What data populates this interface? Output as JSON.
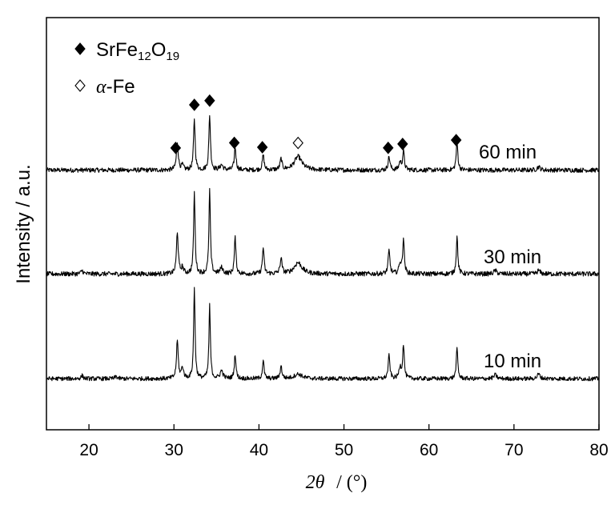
{
  "chart_data": {
    "type": "line",
    "xlabel_symbol": "2θ",
    "xlabel_unit": "/ (°)",
    "ylabel": "Intensity / a.u.",
    "xlim": [
      15,
      80
    ],
    "xticks": [
      20,
      30,
      40,
      50,
      60,
      70,
      80
    ],
    "yticks_shown": false,
    "legend": {
      "placement": "top-left",
      "entries": [
        {
          "marker": "filled-diamond",
          "parts": [
            {
              "text": "SrFe",
              "sub": false
            },
            {
              "text": "12",
              "sub": true
            },
            {
              "text": "O",
              "sub": false
            },
            {
              "text": "19",
              "sub": true
            }
          ]
        },
        {
          "marker": "open-diamond",
          "parts": [
            {
              "text": "α",
              "sub": false,
              "italic": true
            },
            {
              "text": "-Fe",
              "sub": false
            }
          ]
        }
      ]
    },
    "series": [
      {
        "name": "60 min",
        "baseline": 0.9,
        "peaks": [
          {
            "x": 30.4,
            "h": 3.3,
            "w": 0.13
          },
          {
            "x": 31.0,
            "h": 0.5,
            "w": 0.15
          },
          {
            "x": 32.4,
            "h": 6.1,
            "w": 0.11
          },
          {
            "x": 34.2,
            "h": 6.6,
            "w": 0.11
          },
          {
            "x": 35.6,
            "h": 0.6,
            "w": 0.2
          },
          {
            "x": 37.2,
            "h": 2.7,
            "w": 0.12
          },
          {
            "x": 40.5,
            "h": 1.8,
            "w": 0.12
          },
          {
            "x": 42.6,
            "h": 1.3,
            "w": 0.13
          },
          {
            "x": 44.6,
            "h": 1.6,
            "w": 0.55
          },
          {
            "x": 55.3,
            "h": 1.6,
            "w": 0.13
          },
          {
            "x": 56.6,
            "h": 0.9,
            "w": 0.15
          },
          {
            "x": 57.0,
            "h": 2.2,
            "w": 0.12
          },
          {
            "x": 63.3,
            "h": 3.3,
            "w": 0.12
          },
          {
            "x": 72.9,
            "h": 0.4,
            "w": 0.2
          }
        ]
      },
      {
        "name": "30 min",
        "baseline": 0.9,
        "peaks": [
          {
            "x": 19.2,
            "h": 0.4,
            "w": 0.15
          },
          {
            "x": 30.4,
            "h": 4.9,
            "w": 0.12
          },
          {
            "x": 31.0,
            "h": 0.7,
            "w": 0.15
          },
          {
            "x": 32.4,
            "h": 9.5,
            "w": 0.1
          },
          {
            "x": 34.2,
            "h": 9.8,
            "w": 0.1
          },
          {
            "x": 35.6,
            "h": 0.7,
            "w": 0.2
          },
          {
            "x": 37.2,
            "h": 4.2,
            "w": 0.11
          },
          {
            "x": 40.5,
            "h": 3.1,
            "w": 0.11
          },
          {
            "x": 42.6,
            "h": 1.8,
            "w": 0.13
          },
          {
            "x": 44.6,
            "h": 1.3,
            "w": 0.55
          },
          {
            "x": 55.3,
            "h": 2.7,
            "w": 0.12
          },
          {
            "x": 56.6,
            "h": 1.2,
            "w": 0.15
          },
          {
            "x": 57.0,
            "h": 4.1,
            "w": 0.11
          },
          {
            "x": 63.3,
            "h": 4.3,
            "w": 0.11
          },
          {
            "x": 67.8,
            "h": 0.4,
            "w": 0.2
          },
          {
            "x": 72.9,
            "h": 0.4,
            "w": 0.2
          }
        ]
      },
      {
        "name": "10 min",
        "baseline": 0.5,
        "peaks": [
          {
            "x": 19.2,
            "h": 0.4,
            "w": 0.15
          },
          {
            "x": 23.2,
            "h": 0.3,
            "w": 0.15
          },
          {
            "x": 30.4,
            "h": 4.9,
            "w": 0.12
          },
          {
            "x": 31.0,
            "h": 1.4,
            "w": 0.15
          },
          {
            "x": 32.4,
            "h": 11.8,
            "w": 0.1
          },
          {
            "x": 34.2,
            "h": 9.5,
            "w": 0.1
          },
          {
            "x": 35.6,
            "h": 1.0,
            "w": 0.2
          },
          {
            "x": 37.2,
            "h": 3.2,
            "w": 0.11
          },
          {
            "x": 40.5,
            "h": 2.4,
            "w": 0.11
          },
          {
            "x": 42.6,
            "h": 1.6,
            "w": 0.13
          },
          {
            "x": 44.6,
            "h": 0.6,
            "w": 0.55
          },
          {
            "x": 55.3,
            "h": 3.0,
            "w": 0.12
          },
          {
            "x": 56.6,
            "h": 1.5,
            "w": 0.15
          },
          {
            "x": 57.0,
            "h": 4.4,
            "w": 0.11
          },
          {
            "x": 63.3,
            "h": 3.9,
            "w": 0.11
          },
          {
            "x": 67.8,
            "h": 0.5,
            "w": 0.2
          },
          {
            "x": 72.9,
            "h": 0.6,
            "w": 0.2
          }
        ]
      }
    ],
    "peak_markers": [
      {
        "x": 30.2,
        "phase": "SrFe12O19",
        "style": "filled"
      },
      {
        "x": 32.4,
        "phase": "SrFe12O19",
        "style": "filled"
      },
      {
        "x": 34.2,
        "phase": "SrFe12O19",
        "style": "filled"
      },
      {
        "x": 37.1,
        "phase": "SrFe12O19",
        "style": "filled"
      },
      {
        "x": 40.4,
        "phase": "SrFe12O19",
        "style": "filled"
      },
      {
        "x": 44.6,
        "phase": "α-Fe",
        "style": "open"
      },
      {
        "x": 55.2,
        "phase": "SrFe12O19",
        "style": "filled"
      },
      {
        "x": 56.9,
        "phase": "SrFe12O19",
        "style": "filled"
      },
      {
        "x": 63.2,
        "phase": "SrFe12O19",
        "style": "filled"
      }
    ]
  }
}
